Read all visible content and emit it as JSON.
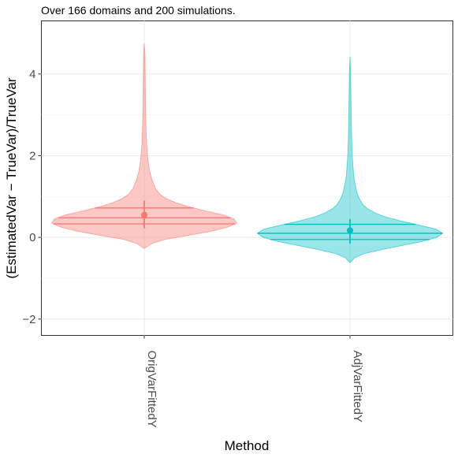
{
  "chart_data": {
    "type": "violin",
    "subtitle": "Over 166 domains and 200 simulations.",
    "xlabel": "Method",
    "ylabel": "(EstimatedVar − TrueVar)/TrueVar",
    "categories": [
      "OrigVarFittedY",
      "AdjVarFittedY"
    ],
    "y_ticks": [
      -2,
      0,
      2,
      4
    ],
    "y_tick_labels": [
      "−2",
      "0",
      "2",
      "4"
    ],
    "ylim": [
      -2.4,
      5.3
    ],
    "grid": true,
    "series": [
      {
        "category": "OrigVarFittedY",
        "color": "#F8766D",
        "fill": "#F8766D",
        "min": -0.27,
        "max": 4.75,
        "q1": 0.33,
        "median": 0.48,
        "q3": 0.72,
        "mean": 0.55,
        "ci": [
          0.22,
          0.9
        ],
        "density": [
          [
            -0.27,
            0.0
          ],
          [
            -0.15,
            0.08
          ],
          [
            -0.05,
            0.22
          ],
          [
            0.05,
            0.48
          ],
          [
            0.15,
            0.72
          ],
          [
            0.25,
            0.9
          ],
          [
            0.35,
            1.0
          ],
          [
            0.45,
            0.97
          ],
          [
            0.55,
            0.85
          ],
          [
            0.65,
            0.66
          ],
          [
            0.75,
            0.48
          ],
          [
            0.85,
            0.34
          ],
          [
            0.95,
            0.24
          ],
          [
            1.05,
            0.17
          ],
          [
            1.2,
            0.12
          ],
          [
            1.4,
            0.085
          ],
          [
            1.6,
            0.06
          ],
          [
            1.8,
            0.045
          ],
          [
            2.0,
            0.035
          ],
          [
            2.3,
            0.025
          ],
          [
            2.6,
            0.02
          ],
          [
            3.0,
            0.015
          ],
          [
            3.5,
            0.012
          ],
          [
            4.0,
            0.01
          ],
          [
            4.4,
            0.008
          ],
          [
            4.75,
            0.0
          ]
        ]
      },
      {
        "category": "AdjVarFittedY",
        "color": "#00BFC4",
        "fill": "#00BFC4",
        "min": -0.62,
        "max": 4.42,
        "q1": -0.05,
        "median": 0.1,
        "q3": 0.32,
        "mean": 0.17,
        "ci": [
          -0.15,
          0.45
        ],
        "density": [
          [
            -0.62,
            0.0
          ],
          [
            -0.5,
            0.05
          ],
          [
            -0.4,
            0.15
          ],
          [
            -0.3,
            0.34
          ],
          [
            -0.2,
            0.56
          ],
          [
            -0.1,
            0.78
          ],
          [
            0.0,
            0.94
          ],
          [
            0.1,
            1.0
          ],
          [
            0.2,
            0.93
          ],
          [
            0.3,
            0.75
          ],
          [
            0.4,
            0.55
          ],
          [
            0.5,
            0.38
          ],
          [
            0.6,
            0.27
          ],
          [
            0.7,
            0.19
          ],
          [
            0.8,
            0.14
          ],
          [
            0.95,
            0.1
          ],
          [
            1.1,
            0.075
          ],
          [
            1.3,
            0.055
          ],
          [
            1.5,
            0.04
          ],
          [
            1.8,
            0.03
          ],
          [
            2.1,
            0.022
          ],
          [
            2.5,
            0.017
          ],
          [
            3.0,
            0.013
          ],
          [
            3.5,
            0.01
          ],
          [
            4.0,
            0.007
          ],
          [
            4.42,
            0.0
          ]
        ]
      }
    ]
  }
}
